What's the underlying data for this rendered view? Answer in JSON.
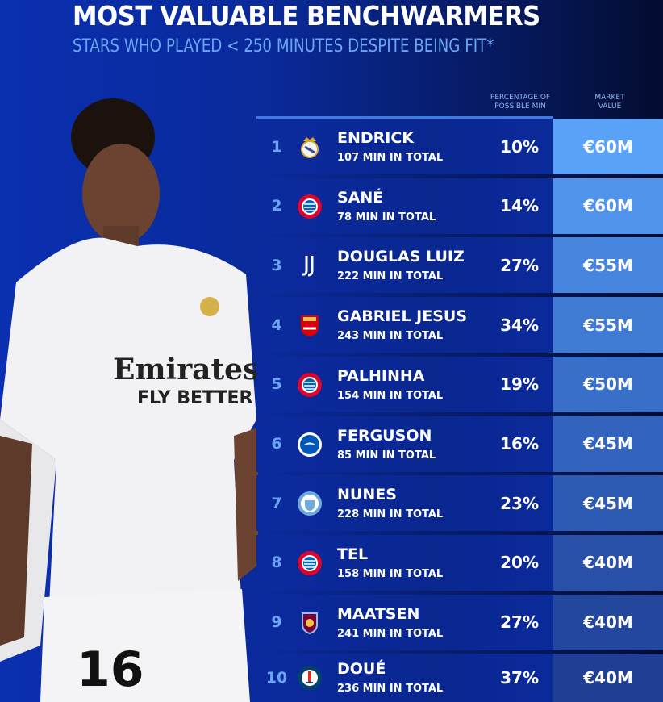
{
  "title": "MOST VALUABLE BENCHWARMERS",
  "subtitle": "STARS WHO PLAYED < 250 MINUTES DESPITE BEING FIT*",
  "columns": {
    "percentage": "PERCENTAGE OF POSSIBLE MIN",
    "value": "MARKET VALUE"
  },
  "player_photo": {
    "shirt_text": "Emirates FLY BETTER",
    "number": "16"
  },
  "rows": [
    {
      "rank": "1",
      "name": "ENDRICK",
      "minutes": "107 MIN IN TOTAL",
      "percentage": "10%",
      "value": "€60M",
      "club_icon": "real-madrid-crest-icon",
      "value_color": "#5aa2f8"
    },
    {
      "rank": "2",
      "name": "SANÉ",
      "minutes": "78 MIN IN TOTAL",
      "percentage": "14%",
      "value": "€60M",
      "club_icon": "bayern-crest-icon",
      "value_color": "#4f93ea"
    },
    {
      "rank": "3",
      "name": "DOUGLAS LUIZ",
      "minutes": "222 MIN IN TOTAL",
      "percentage": "27%",
      "value": "€55M",
      "club_icon": "juventus-crest-icon",
      "value_color": "#4686de"
    },
    {
      "rank": "4",
      "name": "GABRIEL JESUS",
      "minutes": "243 MIN IN TOTAL",
      "percentage": "34%",
      "value": "€55M",
      "club_icon": "arsenal-crest-icon",
      "value_color": "#3f7ad3"
    },
    {
      "rank": "5",
      "name": "PALHINHA",
      "minutes": "154 MIN IN TOTAL",
      "percentage": "19%",
      "value": "€50M",
      "club_icon": "bayern-crest-icon",
      "value_color": "#386fc8"
    },
    {
      "rank": "6",
      "name": "FERGUSON",
      "minutes": "85 MIN IN TOTAL",
      "percentage": "16%",
      "value": "€45M",
      "club_icon": "brighton-crest-icon",
      "value_color": "#3264bd"
    },
    {
      "rank": "7",
      "name": "NUNES",
      "minutes": "228 MIN IN TOTAL",
      "percentage": "23%",
      "value": "€45M",
      "club_icon": "man-city-crest-icon",
      "value_color": "#2d5ab2"
    },
    {
      "rank": "8",
      "name": "TEL",
      "minutes": "158 MIN IN TOTAL",
      "percentage": "20%",
      "value": "€40M",
      "club_icon": "bayern-crest-icon",
      "value_color": "#2850a8"
    },
    {
      "rank": "9",
      "name": "MAATSEN",
      "minutes": "241 MIN IN TOTAL",
      "percentage": "27%",
      "value": "€40M",
      "club_icon": "aston-villa-crest-icon",
      "value_color": "#24479e"
    },
    {
      "rank": "10",
      "name": "DOUÉ",
      "minutes": "236 MIN IN TOTAL",
      "percentage": "37%",
      "value": "€40M",
      "club_icon": "psg-crest-icon",
      "value_color": "#203f94"
    }
  ]
}
